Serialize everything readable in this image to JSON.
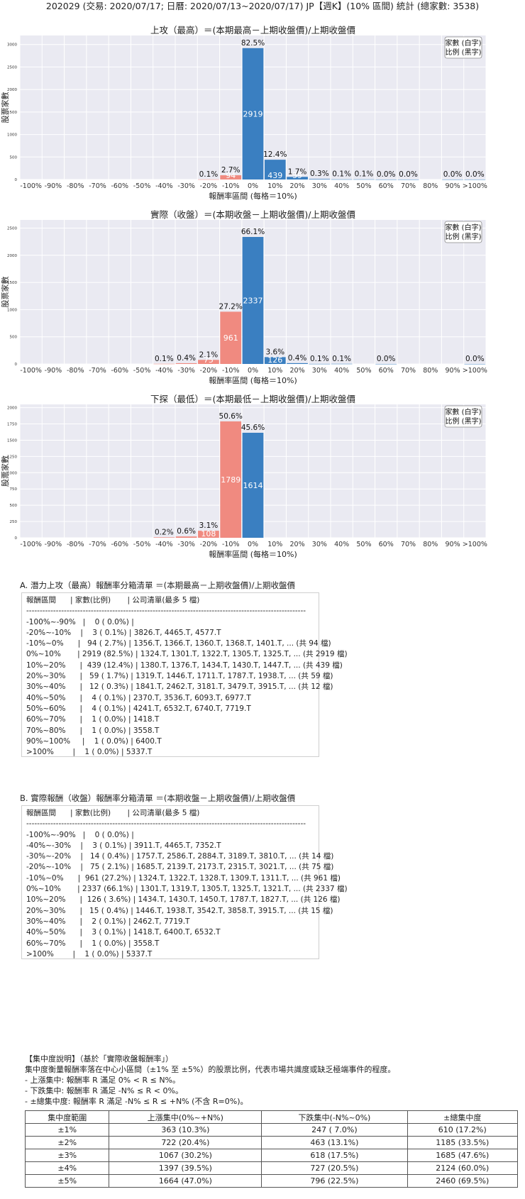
{
  "page_title": "202029 (交易: 2020/07/17; 日曆: 2020/07/13~2020/07/17) JP【週K】(10% 區間) 統計 (總家數: 3538)",
  "legend_box": [
    "家數 (白字)",
    "比例 (黑字)"
  ],
  "colors": {
    "positive": "#3a7fc1",
    "negative": "#f08a80",
    "plot_bg": "#eaeaf2",
    "grid": "#ffffff"
  },
  "chart_data": [
    {
      "type": "bar",
      "title": "上攻（最高）＝(本期最高－上期收盤價)/上期收盤價",
      "xlabel": "報酬率區間 (每格＝10%)",
      "ylabel": "股票家數",
      "categories": [
        "-100%",
        "-90%",
        "-80%",
        "-70%",
        "-60%",
        "-50%",
        "-40%",
        "-30%",
        "-20%",
        "-10%",
        "0%",
        "10%",
        "20%",
        "30%",
        "40%",
        "50%",
        "60%",
        "70%",
        "80%",
        "90%",
        ">100%"
      ],
      "ylim": [
        0,
        3200
      ],
      "yticks": [
        "0",
        "500",
        "1000",
        "1500",
        "2000",
        "2500",
        "3000"
      ],
      "ytick_values": [
        0,
        500,
        1000,
        1500,
        2000,
        2500,
        3000
      ],
      "bars": [
        {
          "bin": 9,
          "count": 3,
          "count_label": "",
          "pct_label": "0.1%"
        },
        {
          "bin": 10,
          "count": 94,
          "count_label": "94",
          "pct_label": "2.7%"
        },
        {
          "bin": 11,
          "count": 2919,
          "count_label": "2919",
          "pct_label": "82.5%"
        },
        {
          "bin": 12,
          "count": 439,
          "count_label": "439",
          "pct_label": "12.4%"
        },
        {
          "bin": 13,
          "count": 59,
          "count_label": "59",
          "pct_label": "1.7%"
        },
        {
          "bin": 14,
          "count": 12,
          "count_label": "",
          "pct_label": "0.3%"
        },
        {
          "bin": 15,
          "count": 4,
          "count_label": "",
          "pct_label": "0.1%"
        },
        {
          "bin": 16,
          "count": 4,
          "count_label": "",
          "pct_label": "0.1%"
        },
        {
          "bin": 17,
          "count": 1,
          "count_label": "",
          "pct_label": "0.0%"
        },
        {
          "bin": 18,
          "count": 1,
          "count_label": "",
          "pct_label": "0.0%"
        },
        {
          "bin": 20,
          "count": 1,
          "count_label": "",
          "pct_label": "0.0%"
        },
        {
          "bin": 21,
          "count": 1,
          "count_label": "",
          "pct_label": "0.0%"
        }
      ]
    },
    {
      "type": "bar",
      "title": "實際（收盤）＝(本期收盤－上期收盤價)/上期收盤價",
      "xlabel": "報酬率區間 (每格＝10%)",
      "ylabel": "股票家數",
      "categories": [
        "-100%",
        "-90%",
        "-80%",
        "-70%",
        "-60%",
        "-50%",
        "-40%",
        "-30%",
        "-20%",
        "-10%",
        "0%",
        "10%",
        "20%",
        "30%",
        "40%",
        "50%",
        "60%",
        "70%",
        "80%",
        "90%",
        ">100%"
      ],
      "ylim": [
        0,
        2650
      ],
      "yticks": [
        "0",
        "500",
        "1000",
        "1500",
        "2000",
        "2500"
      ],
      "ytick_values": [
        0,
        500,
        1000,
        1500,
        2000,
        2500
      ],
      "bars": [
        {
          "bin": 7,
          "count": 3,
          "count_label": "",
          "pct_label": "0.1%"
        },
        {
          "bin": 8,
          "count": 14,
          "count_label": "",
          "pct_label": "0.4%"
        },
        {
          "bin": 9,
          "count": 75,
          "count_label": "75",
          "pct_label": "2.1%"
        },
        {
          "bin": 10,
          "count": 961,
          "count_label": "961",
          "pct_label": "27.2%"
        },
        {
          "bin": 11,
          "count": 2337,
          "count_label": "2337",
          "pct_label": "66.1%"
        },
        {
          "bin": 12,
          "count": 126,
          "count_label": "126",
          "pct_label": "3.6%"
        },
        {
          "bin": 13,
          "count": 15,
          "count_label": "",
          "pct_label": "0.4%"
        },
        {
          "bin": 14,
          "count": 2,
          "count_label": "",
          "pct_label": "0.1%"
        },
        {
          "bin": 15,
          "count": 3,
          "count_label": "",
          "pct_label": "0.1%"
        },
        {
          "bin": 17,
          "count": 1,
          "count_label": "",
          "pct_label": "0.0%"
        },
        {
          "bin": 21,
          "count": 1,
          "count_label": "",
          "pct_label": "0.0%"
        }
      ]
    },
    {
      "type": "bar",
      "title": "下探（最低）＝(本期最低－上期收盤價)/上期收盤價",
      "xlabel": "報酬率區間 (每格＝10%)",
      "ylabel": "股票家數",
      "categories": [
        "-100%",
        "-90%",
        "-80%",
        "-70%",
        "-60%",
        "-50%",
        "-40%",
        "-30%",
        "-20%",
        "-10%",
        "0%",
        "10%",
        "20%",
        "30%",
        "40%",
        "50%",
        "60%",
        "70%",
        "80%",
        "90%",
        ">100%"
      ],
      "ylim": [
        0,
        2050
      ],
      "yticks": [
        "0",
        "250",
        "500",
        "750",
        "1000",
        "1250",
        "1500",
        "1750",
        "2000"
      ],
      "ytick_values": [
        0,
        250,
        500,
        750,
        1000,
        1250,
        1500,
        1750,
        2000
      ],
      "bars": [
        {
          "bin": 7,
          "count": 7,
          "count_label": "",
          "pct_label": "0.2%"
        },
        {
          "bin": 8,
          "count": 20,
          "count_label": "",
          "pct_label": "0.6%"
        },
        {
          "bin": 9,
          "count": 108,
          "count_label": "108",
          "pct_label": "3.1%"
        },
        {
          "bin": 10,
          "count": 1789,
          "count_label": "1789",
          "pct_label": "50.6%"
        },
        {
          "bin": 11,
          "count": 1614,
          "count_label": "1614",
          "pct_label": "45.6%"
        }
      ]
    }
  ],
  "list_a": {
    "title": "A. 潛力上攻（最高）報酬率分箱清單 ＝(本期最高－上期收盤價)/上期收盤價",
    "lines": [
      "報酬區間      | 家數(比例)       | 公司清單(最多 5 檔)",
      "--------------------------------------------------------------------------------------------------------",
      "-100%~-90%   |    0 ( 0.0%) |",
      "-20%~-10%    |    3 ( 0.1%) | 3826.T, 4465.T, 4577.T",
      "-10%~0%      |   94 ( 2.7%) | 1356.T, 1366.T, 1360.T, 1368.T, 1401.T, ... (共 94 檔)",
      "0%~10%       | 2919 (82.5%) | 1324.T, 1301.T, 1322.T, 1305.T, 1325.T, ... (共 2919 檔)",
      "10%~20%      |  439 (12.4%) | 1380.T, 1376.T, 1434.T, 1430.T, 1447.T, ... (共 439 檔)",
      "20%~30%      |   59 ( 1.7%) | 1319.T, 1446.T, 1711.T, 1787.T, 1938.T, ... (共 59 檔)",
      "30%~40%      |   12 ( 0.3%) | 1841.T, 2462.T, 3181.T, 3479.T, 3915.T, ... (共 12 檔)",
      "40%~50%      |    4 ( 0.1%) | 2370.T, 3536.T, 6093.T, 6977.T",
      "50%~60%      |    4 ( 0.1%) | 4241.T, 6532.T, 6740.T, 7719.T",
      "60%~70%      |    1 ( 0.0%) | 1418.T",
      "70%~80%      |    1 ( 0.0%) | 3558.T",
      "90%~100%     |    1 ( 0.0%) | 6400.T",
      ">100%        |    1 ( 0.0%) | 5337.T"
    ]
  },
  "list_b": {
    "title": "B. 實際報酬（收盤）報酬率分箱清單 ＝(本期收盤－上期收盤價)/上期收盤價",
    "lines": [
      "報酬區間      | 家數(比例)       | 公司清單(最多 5 檔)",
      "--------------------------------------------------------------------------------------------------------",
      "-100%~-90%   |    0 ( 0.0%) |",
      "-40%~-30%    |    3 ( 0.1%) | 3911.T, 4465.T, 7352.T",
      "-30%~-20%    |   14 ( 0.4%) | 1757.T, 2586.T, 2884.T, 3189.T, 3810.T, ... (共 14 檔)",
      "-20%~-10%    |   75 ( 2.1%) | 1685.T, 2139.T, 2173.T, 2315.T, 3021.T, ... (共 75 檔)",
      "-10%~0%      |  961 (27.2%) | 1324.T, 1322.T, 1328.T, 1309.T, 1311.T, ... (共 961 檔)",
      "0%~10%       | 2337 (66.1%) | 1301.T, 1319.T, 1305.T, 1325.T, 1321.T, ... (共 2337 檔)",
      "10%~20%      |  126 ( 3.6%) | 1434.T, 1430.T, 1450.T, 1787.T, 1827.T, ... (共 126 檔)",
      "20%~30%      |   15 ( 0.4%) | 1446.T, 1938.T, 3542.T, 3858.T, 3915.T, ... (共 15 檔)",
      "30%~40%      |    2 ( 0.1%) | 2462.T, 7719.T",
      "40%~50%      |    3 ( 0.1%) | 1418.T, 6400.T, 6532.T",
      "60%~70%      |    1 ( 0.0%) | 3558.T",
      ">100%        |    1 ( 0.0%) | 5337.T"
    ]
  },
  "concentration": {
    "notes": [
      "【集中度說明】（基於「實際收盤報酬率」）",
      "集中度衡量報酬率落在中心小區間（±1% 至 ±5%）的股票比例，代表市場共識度或缺乏極端事件的程度。",
      " - 上漲集中: 報酬率 R 滿足 0% < R ≤ N%。",
      " - 下跌集中: 報酬率 R 滿足 -N% ≤ R < 0%。",
      " - ±總集中度: 報酬率 R 滿足 -N% ≤ R ≤ +N% (不含 R=0%)。"
    ],
    "headers": [
      "集中度範圍",
      "上漲集中(0%~+N%)",
      "下跌集中(-N%~0%)",
      "±總集中度"
    ],
    "rows": [
      [
        "±1%",
        "363 (10.3%)",
        "247 ( 7.0%)",
        "610 (17.2%)"
      ],
      [
        "±2%",
        "722 (20.4%)",
        "463 (13.1%)",
        "1185 (33.5%)"
      ],
      [
        "±3%",
        "1067 (30.2%)",
        "618 (17.5%)",
        "1685 (47.6%)"
      ],
      [
        "±4%",
        "1397 (39.5%)",
        "727 (20.5%)",
        "2124 (60.0%)"
      ],
      [
        "±5%",
        "1664 (47.0%)",
        "796 (22.5%)",
        "2460 (69.5%)"
      ]
    ]
  }
}
